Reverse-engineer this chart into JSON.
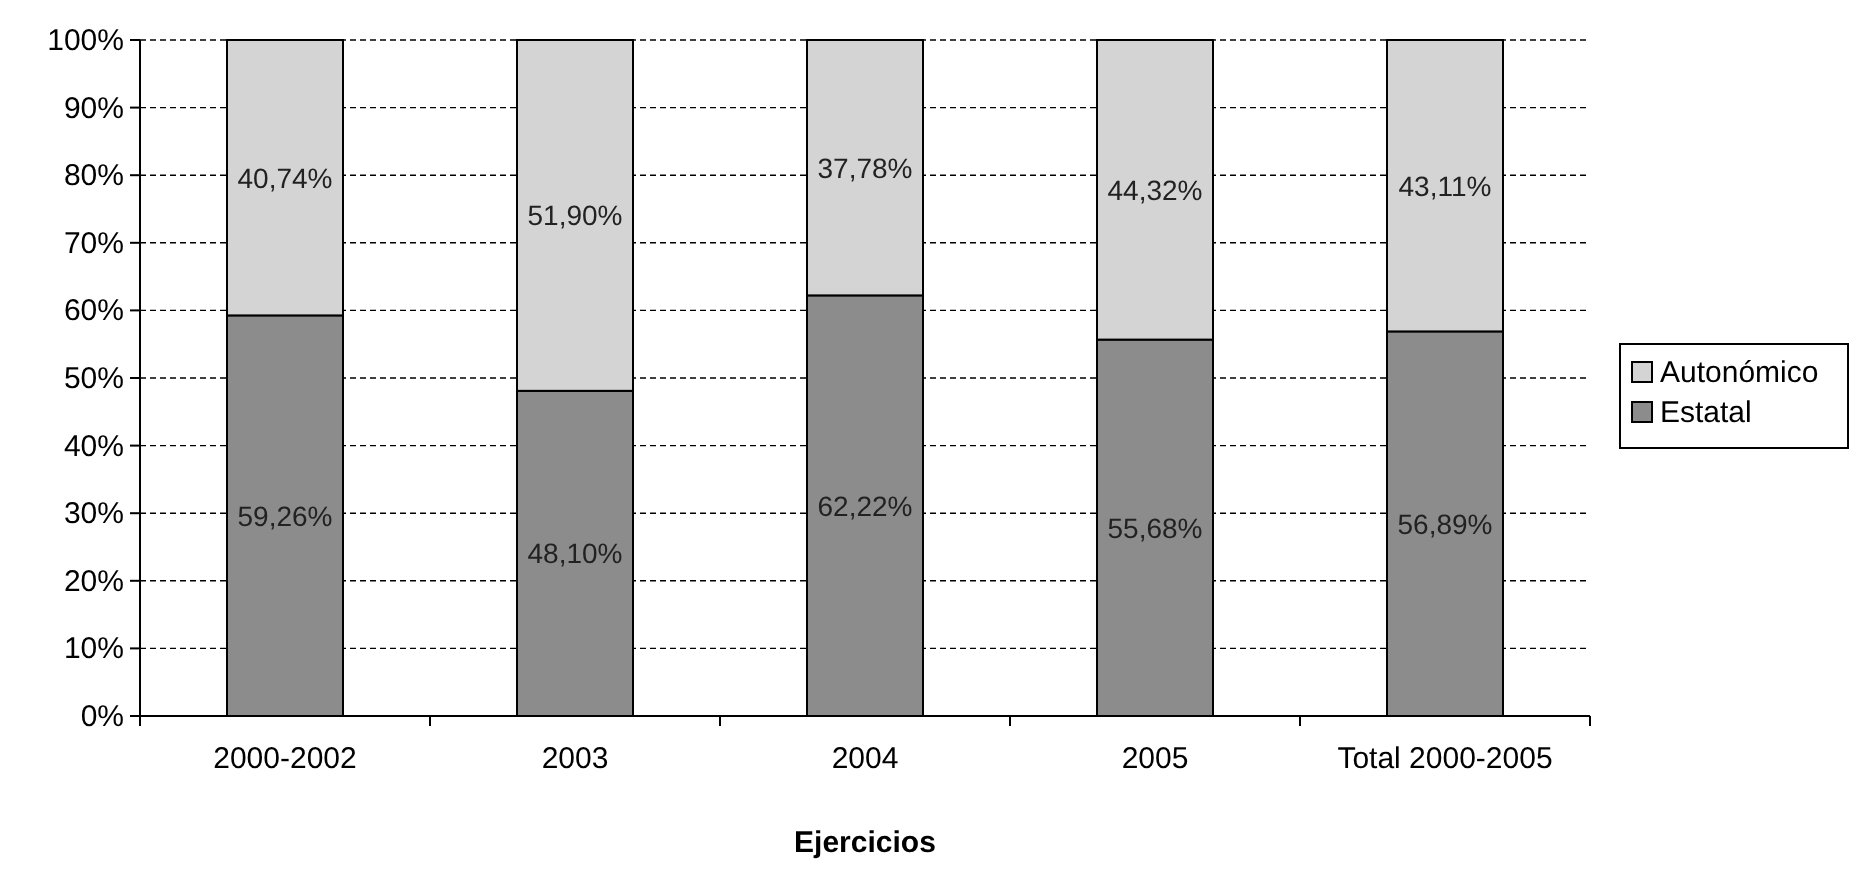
{
  "chart_data": {
    "type": "bar",
    "stacked": true,
    "xlabel": "Ejercicios",
    "categories": [
      "2000-2002",
      "2003",
      "2004",
      "2005",
      "Total 2000-2005"
    ],
    "series": [
      {
        "name": "Estatal",
        "color": "#8c8c8c",
        "values": [
          59.26,
          48.1,
          62.22,
          55.68,
          56.89
        ],
        "value_labels": [
          "59,26%",
          "48,10%",
          "62,22%",
          "55,68%",
          "56,89%"
        ]
      },
      {
        "name": "Autonómico",
        "color": "#d4d4d4",
        "values": [
          40.74,
          51.9,
          37.78,
          44.32,
          43.11
        ],
        "value_labels": [
          "40,74%",
          "51,90%",
          "37,78%",
          "44,32%",
          "43,11%"
        ]
      }
    ],
    "ylim": [
      0,
      100
    ],
    "yticks": [
      {
        "value": 0,
        "label": "0%"
      },
      {
        "value": 10,
        "label": "10%"
      },
      {
        "value": 20,
        "label": "20%"
      },
      {
        "value": 30,
        "label": "30%"
      },
      {
        "value": 40,
        "label": "40%"
      },
      {
        "value": 50,
        "label": "50%"
      },
      {
        "value": 60,
        "label": "60%"
      },
      {
        "value": 70,
        "label": "70%"
      },
      {
        "value": 80,
        "label": "80%"
      },
      {
        "value": 90,
        "label": "90%"
      },
      {
        "value": 100,
        "label": "100%"
      }
    ],
    "grid": "y",
    "legend": "right"
  }
}
